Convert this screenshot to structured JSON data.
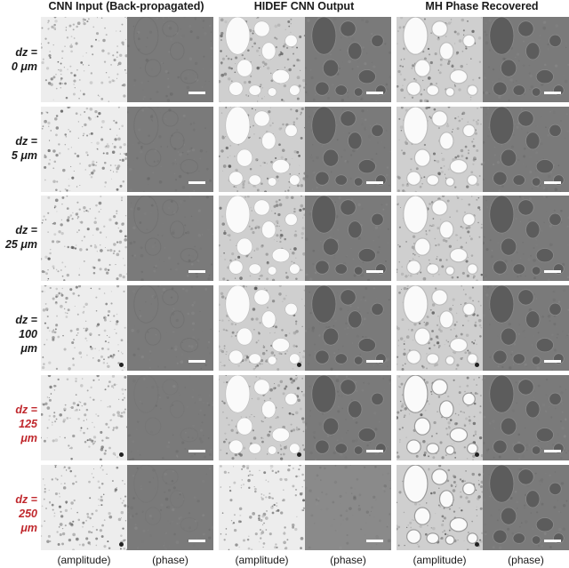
{
  "headers": {
    "cnn_input": "CNN Input (Back-propagated)",
    "hidef_output": "HIDEF CNN Output",
    "mh_recovered": "MH Phase Recovered"
  },
  "rows": [
    {
      "line1": "dz =",
      "line2": "0 μm",
      "highlight": false
    },
    {
      "line1": "dz =",
      "line2": "5 μm",
      "highlight": false
    },
    {
      "line1": "dz =",
      "line2": "25 μm",
      "highlight": false
    },
    {
      "line1": "dz =",
      "line2": "100 μm",
      "highlight": false
    },
    {
      "line1": "dz =",
      "line2": "125 μm",
      "highlight": true
    },
    {
      "line1": "dz =",
      "line2": "250 μm",
      "highlight": true
    }
  ],
  "footers": {
    "amplitude": "(amplitude)",
    "phase": "(phase)"
  },
  "colors": {
    "highlight_label": "#c0282d",
    "phase_gray": "#7a7a7a",
    "amplitude_bg": "#f2f2f2"
  }
}
